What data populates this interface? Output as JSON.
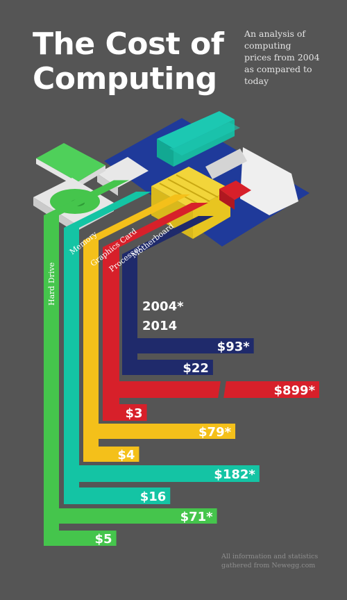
{
  "title": {
    "line1": "The Cost of",
    "line2": "Computing"
  },
  "subtitle_lines": [
    "An analysis of",
    "computing",
    "prices from 2004",
    "as compared to",
    "today"
  ],
  "footnote_lines": [
    "All information and statistics",
    "gathered from Newegg.com"
  ],
  "legend": {
    "label_2004": "2004*",
    "label_2014": "2014"
  },
  "colors": {
    "background": "#555555",
    "Motherboard": "#1f2a6b",
    "Processor": "#d7202a",
    "Graphics Card": "#f4c01a",
    "Memory": "#14c4a4",
    "Hard Drive": "#45c54c",
    "board": "#1f3a9a"
  },
  "chart_data": {
    "type": "bar",
    "categories": [
      "Motherboard",
      "Processor",
      "Graphics Card",
      "Memory",
      "Hard Drive"
    ],
    "units": "USD",
    "series": [
      {
        "name": "2004*",
        "values": [
          93,
          899,
          79,
          182,
          71
        ],
        "labels": [
          "$93*",
          "$899*",
          "$79*",
          "$182*",
          "$71*"
        ]
      },
      {
        "name": "2014",
        "values": [
          22,
          3,
          4,
          16,
          5
        ],
        "labels": [
          "$22",
          "$3",
          "$4",
          "$16",
          "$5"
        ]
      }
    ]
  }
}
